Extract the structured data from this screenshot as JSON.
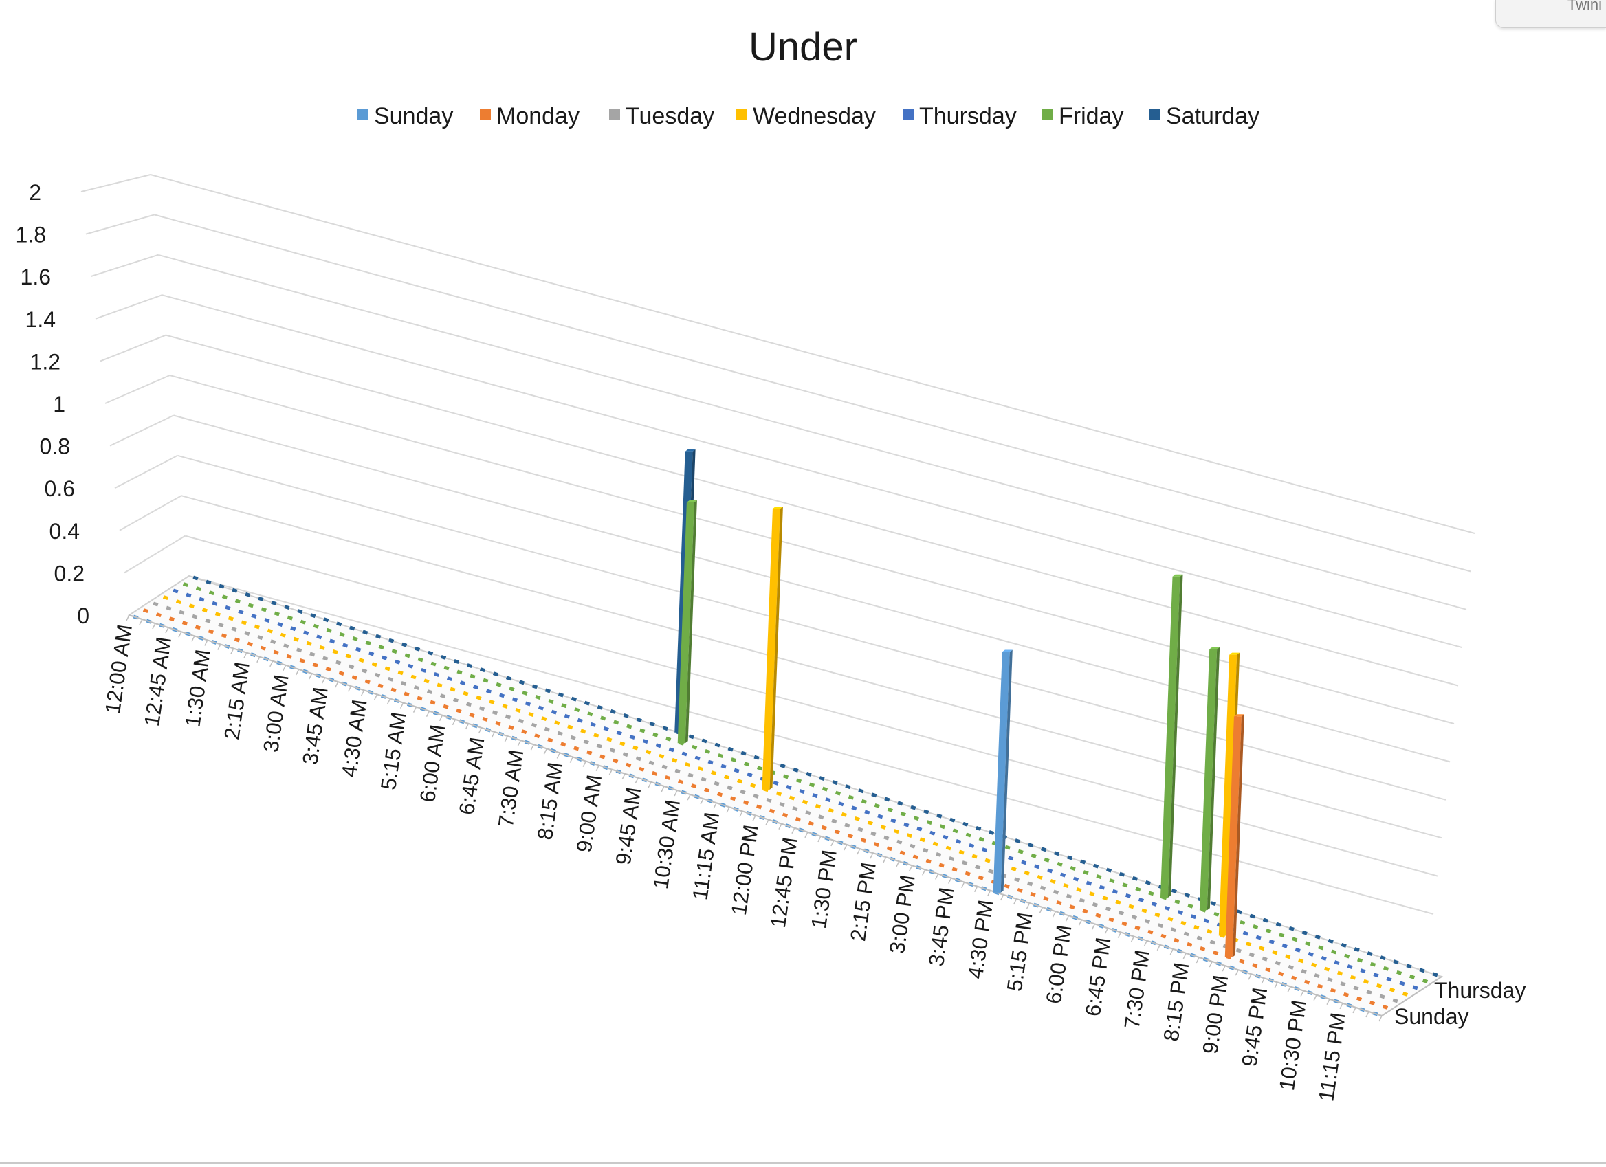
{
  "window": {
    "corner_tab_text": "Twini"
  },
  "chart_data": {
    "type": "bar",
    "variant": "3d-column",
    "title": "Under",
    "legend_position": "top",
    "grid": true,
    "ylim": [
      0,
      2
    ],
    "y_ticks": [
      "0",
      "0.2",
      "0.4",
      "0.6",
      "0.8",
      "1",
      "1.2",
      "1.4",
      "1.6",
      "1.8",
      "2"
    ],
    "x_tick_labels": [
      "12:00 AM",
      "12:45 AM",
      "1:30 AM",
      "2:15 AM",
      "3:00 AM",
      "3:45 AM",
      "4:30 AM",
      "5:15 AM",
      "6:00 AM",
      "6:45 AM",
      "7:30 AM",
      "8:15 AM",
      "9:00 AM",
      "9:45 AM",
      "10:30 AM",
      "11:15 AM",
      "12:00 PM",
      "12:45 PM",
      "1:30 PM",
      "2:15 PM",
      "3:00 PM",
      "3:45 PM",
      "4:30 PM",
      "5:15 PM",
      "6:00 PM",
      "6:45 PM",
      "7:30 PM",
      "8:15 PM",
      "9:00 PM",
      "9:45 PM",
      "10:30 PM",
      "11:15 PM"
    ],
    "depth_tick_labels": [
      "Sunday",
      "Thursday"
    ],
    "series": [
      {
        "name": "Sunday",
        "color": "#5b9bd5"
      },
      {
        "name": "Monday",
        "color": "#ed7d31"
      },
      {
        "name": "Tuesday",
        "color": "#a5a5a5"
      },
      {
        "name": "Wednesday",
        "color": "#ffc000"
      },
      {
        "name": "Thursday",
        "color": "#4472c4"
      },
      {
        "name": "Friday",
        "color": "#70ad47"
      },
      {
        "name": "Saturday",
        "color": "#255e91"
      }
    ],
    "points": [
      {
        "series": "Saturday",
        "x": "9:15 AM",
        "y": 1.4
      },
      {
        "series": "Friday",
        "x": "9:30 AM",
        "y": 1.2
      },
      {
        "series": "Wednesday",
        "x": "11:30 AM",
        "y": 1.4
      },
      {
        "series": "Sunday",
        "x": "4:30 PM",
        "y": 1.2
      },
      {
        "series": "Friday",
        "x": "6:45 PM",
        "y": 1.6
      },
      {
        "series": "Friday",
        "x": "7:30 PM",
        "y": 1.3
      },
      {
        "series": "Wednesday",
        "x": "8:15 PM",
        "y": 1.4
      },
      {
        "series": "Monday",
        "x": "8:45 PM",
        "y": 1.2
      }
    ]
  }
}
